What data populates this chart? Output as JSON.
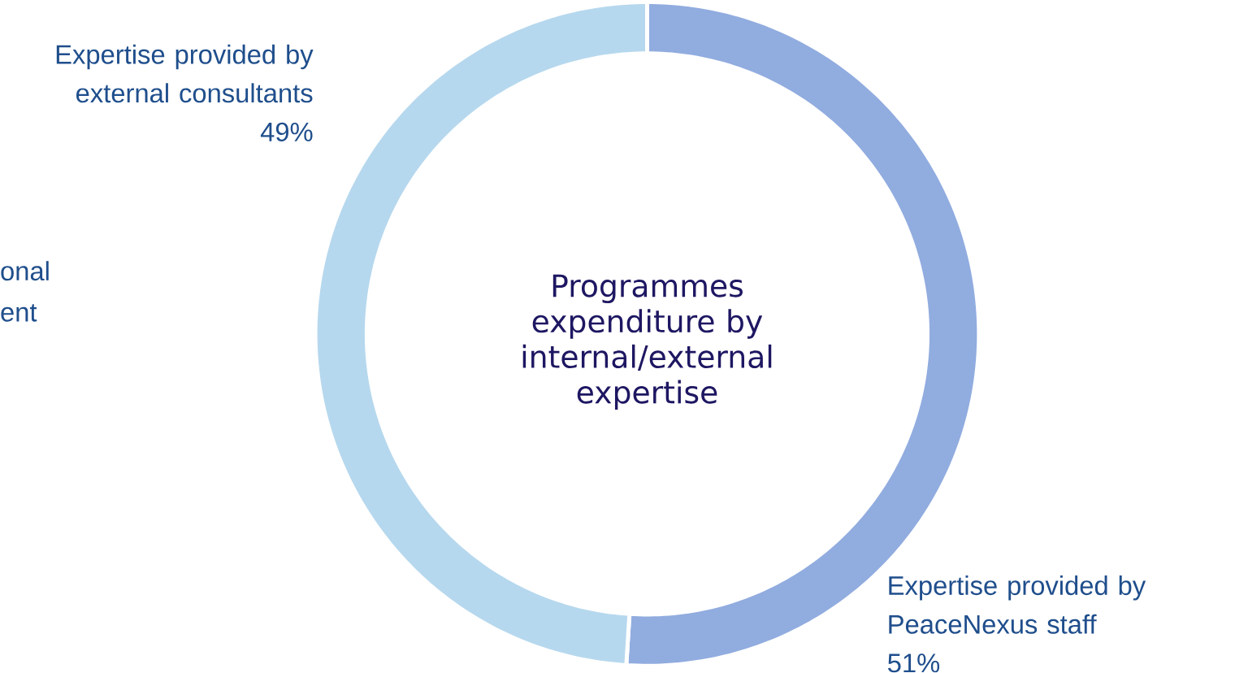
{
  "chart_data": {
    "type": "donut",
    "title": "Programmes expenditure by internal/external expertise",
    "categories": [
      "Expertise provided by PeaceNexus staff",
      "Expertise provided by external consultants"
    ],
    "values": [
      51,
      49
    ],
    "value_labels": [
      "51%",
      "49%"
    ],
    "colors": [
      "#91acdf",
      "#b6d8ee"
    ],
    "annotations": [
      "onal",
      "ent"
    ]
  }
}
